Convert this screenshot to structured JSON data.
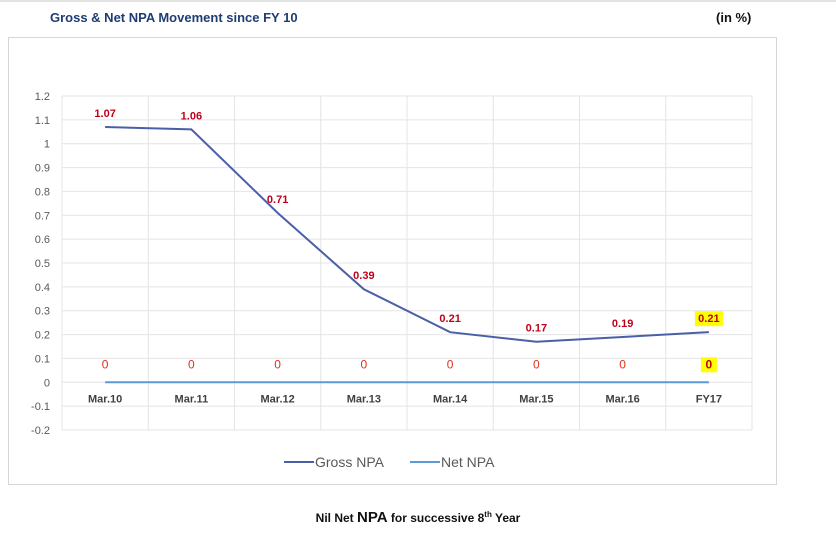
{
  "header": {
    "title": "Gross & Net NPA Movement since FY 10",
    "unit": "(in %)"
  },
  "footer": {
    "pre": "Nil Net ",
    "big": "NPA",
    "mid": " for successive 8",
    "sup": "th",
    "post": " Year"
  },
  "chart_data": {
    "type": "line",
    "categories": [
      "Mar.10",
      "Mar.11",
      "Mar.12",
      "Mar.13",
      "Mar.14",
      "Mar.15",
      "Mar.16",
      "FY17"
    ],
    "series": [
      {
        "name": "Gross NPA",
        "values": [
          1.07,
          1.06,
          0.71,
          0.39,
          0.21,
          0.17,
          0.19,
          0.21
        ],
        "color": "#4a5fa8",
        "label_color": "#c0001a"
      },
      {
        "name": "Net NPA",
        "values": [
          0,
          0,
          0,
          0,
          0,
          0,
          0,
          0
        ],
        "color": "#5b9bd5",
        "label_color": "#e0301e"
      }
    ],
    "ylim": [
      -0.2,
      1.2
    ],
    "yticks": [
      "1.2",
      "1.1",
      "1",
      "0.9",
      "0.8",
      "0.7",
      "0.6",
      "0.5",
      "0.4",
      "0.3",
      "0.2",
      "0.1",
      "0",
      "-0.1",
      "-0.2"
    ],
    "grid": true,
    "legend_position": "bottom",
    "highlight": {
      "category": "FY17",
      "color": "#ffff00"
    }
  }
}
